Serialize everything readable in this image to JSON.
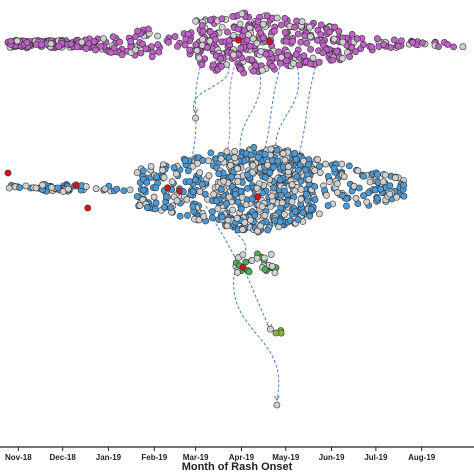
{
  "chart_data": {
    "type": "scatter",
    "subtype": "beeswarm-transmission-network",
    "xlabel": "Month of Rash Onset",
    "x_ticks": [
      "Nov-18",
      "Dec-18",
      "Jan-19",
      "Feb-19",
      "Mar-19",
      "Apr-19",
      "May-19",
      "Jun-19",
      "Jul-19",
      "Aug-19"
    ],
    "x_range": [
      "2018-10-25",
      "2019-08-31"
    ],
    "grid": false,
    "legend": "none",
    "colors": {
      "cluster_a": "#c060c8",
      "cluster_b": "#4a9ad8",
      "neutral": "#d0d0d0",
      "index_case": "#dd1111",
      "green": "#4caf50",
      "olive": "#8ab43a",
      "arrow": "#4a80c8",
      "arrow_alt": "#b070b0",
      "outline": "#333333"
    },
    "clusters": [
      {
        "id": "cluster-a",
        "color": "cluster_a",
        "start": "2018-10-25",
        "end": "2019-08-31",
        "peak": "2019-04-05",
        "approx_cases": 600,
        "segments": [
          {
            "from": "2018-10-25",
            "to": "2018-11-10",
            "count": 55
          },
          {
            "from": "2018-11-12",
            "to": "2018-12-20",
            "count": 95
          },
          {
            "from": "2018-12-22",
            "to": "2019-01-31",
            "count": 55
          },
          {
            "from": "2019-02-01",
            "to": "2019-02-28",
            "count": 20
          },
          {
            "from": "2019-03-01",
            "to": "2019-04-25",
            "count": 200
          },
          {
            "from": "2019-04-25",
            "to": "2019-06-15",
            "count": 130
          },
          {
            "from": "2019-06-15",
            "to": "2019-07-31",
            "count": 35
          },
          {
            "from": "2019-08-01",
            "to": "2019-08-31",
            "count": 10
          }
        ]
      },
      {
        "id": "cluster-b",
        "color": "cluster_b",
        "start": "2018-10-25",
        "end": "2019-07-20",
        "peak": "2019-04-08",
        "approx_cases": 800,
        "segments": [
          {
            "from": "2018-10-25",
            "to": "2018-12-10",
            "count": 40
          },
          {
            "from": "2018-12-10",
            "to": "2019-01-20",
            "count": 15
          },
          {
            "from": "2019-01-20",
            "to": "2019-03-15",
            "count": 150
          },
          {
            "from": "2019-03-15",
            "to": "2019-05-20",
            "count": 480
          },
          {
            "from": "2019-05-20",
            "to": "2019-07-20",
            "count": 110
          }
        ]
      },
      {
        "id": "cluster-c",
        "color": "green",
        "start": "2019-03-28",
        "end": "2019-04-25",
        "approx_cases": 30
      },
      {
        "id": "cluster-d",
        "color": "olive",
        "start": "2019-04-20",
        "end": "2019-05-05",
        "approx_cases": 4
      },
      {
        "id": "cluster-e",
        "color": "neutral",
        "start": "2019-04-25",
        "end": "2019-04-25",
        "approx_cases": 1
      },
      {
        "id": "isolated-case",
        "color": "neutral",
        "start": "2019-03-01",
        "end": "2019-03-01",
        "approx_cases": 1
      }
    ],
    "index_cases": [
      {
        "date": "2018-10-25",
        "cluster": "cluster-b"
      },
      {
        "date": "2018-12-10",
        "cluster": "cluster-b"
      },
      {
        "date": "2018-12-18",
        "cluster": "cluster-b"
      },
      {
        "date": "2019-02-10",
        "cluster": "cluster-b"
      },
      {
        "date": "2019-02-18",
        "cluster": "cluster-b"
      },
      {
        "date": "2019-04-12",
        "cluster": "cluster-b"
      },
      {
        "date": "2019-03-30",
        "cluster": "cluster-a"
      },
      {
        "date": "2019-04-20",
        "cluster": "cluster-a"
      },
      {
        "date": "2019-04-02",
        "cluster": "cluster-c"
      }
    ],
    "links": [
      {
        "from_cluster": "cluster-a",
        "from_date": "2019-03-05",
        "to_cluster": "cluster-b",
        "to_date": "2019-02-25",
        "style": "arrow"
      },
      {
        "from_cluster": "cluster-a",
        "from_date": "2019-03-22",
        "to_cluster": "isolated-case",
        "to_date": "2019-03-01",
        "style": "arrow"
      },
      {
        "from_cluster": "cluster-a",
        "from_date": "2019-03-28",
        "to_cluster": "cluster-b",
        "to_date": "2019-03-20",
        "style": "arrow_alt"
      },
      {
        "from_cluster": "cluster-a",
        "from_date": "2019-04-12",
        "to_cluster": "cluster-b",
        "to_date": "2019-04-02",
        "style": "arrow"
      },
      {
        "from_cluster": "cluster-a",
        "from_date": "2019-04-28",
        "to_cluster": "cluster-b",
        "to_date": "2019-04-14",
        "style": "arrow"
      },
      {
        "from_cluster": "cluster-a",
        "from_date": "2019-05-08",
        "to_cluster": "cluster-b",
        "to_date": "2019-04-26",
        "style": "arrow"
      },
      {
        "from_cluster": "cluster-a",
        "from_date": "2019-05-22",
        "to_cluster": "cluster-b",
        "to_date": "2019-05-08",
        "style": "arrow"
      },
      {
        "from_cluster": "cluster-b",
        "from_date": "2019-03-08",
        "to_cluster": "cluster-c",
        "to_date": "2019-03-28",
        "style": "arrow"
      },
      {
        "from_cluster": "cluster-b",
        "from_date": "2019-03-22",
        "to_cluster": "cluster-c",
        "to_date": "2019-04-02",
        "style": "arrow"
      },
      {
        "from_cluster": "cluster-c",
        "from_date": "2019-04-02",
        "to_cluster": "cluster-d",
        "to_date": "2019-04-20",
        "style": "arrow"
      },
      {
        "from_cluster": "cluster-c",
        "from_date": "2019-03-28",
        "to_cluster": "cluster-e",
        "to_date": "2019-04-25",
        "style": "arrow"
      }
    ]
  }
}
